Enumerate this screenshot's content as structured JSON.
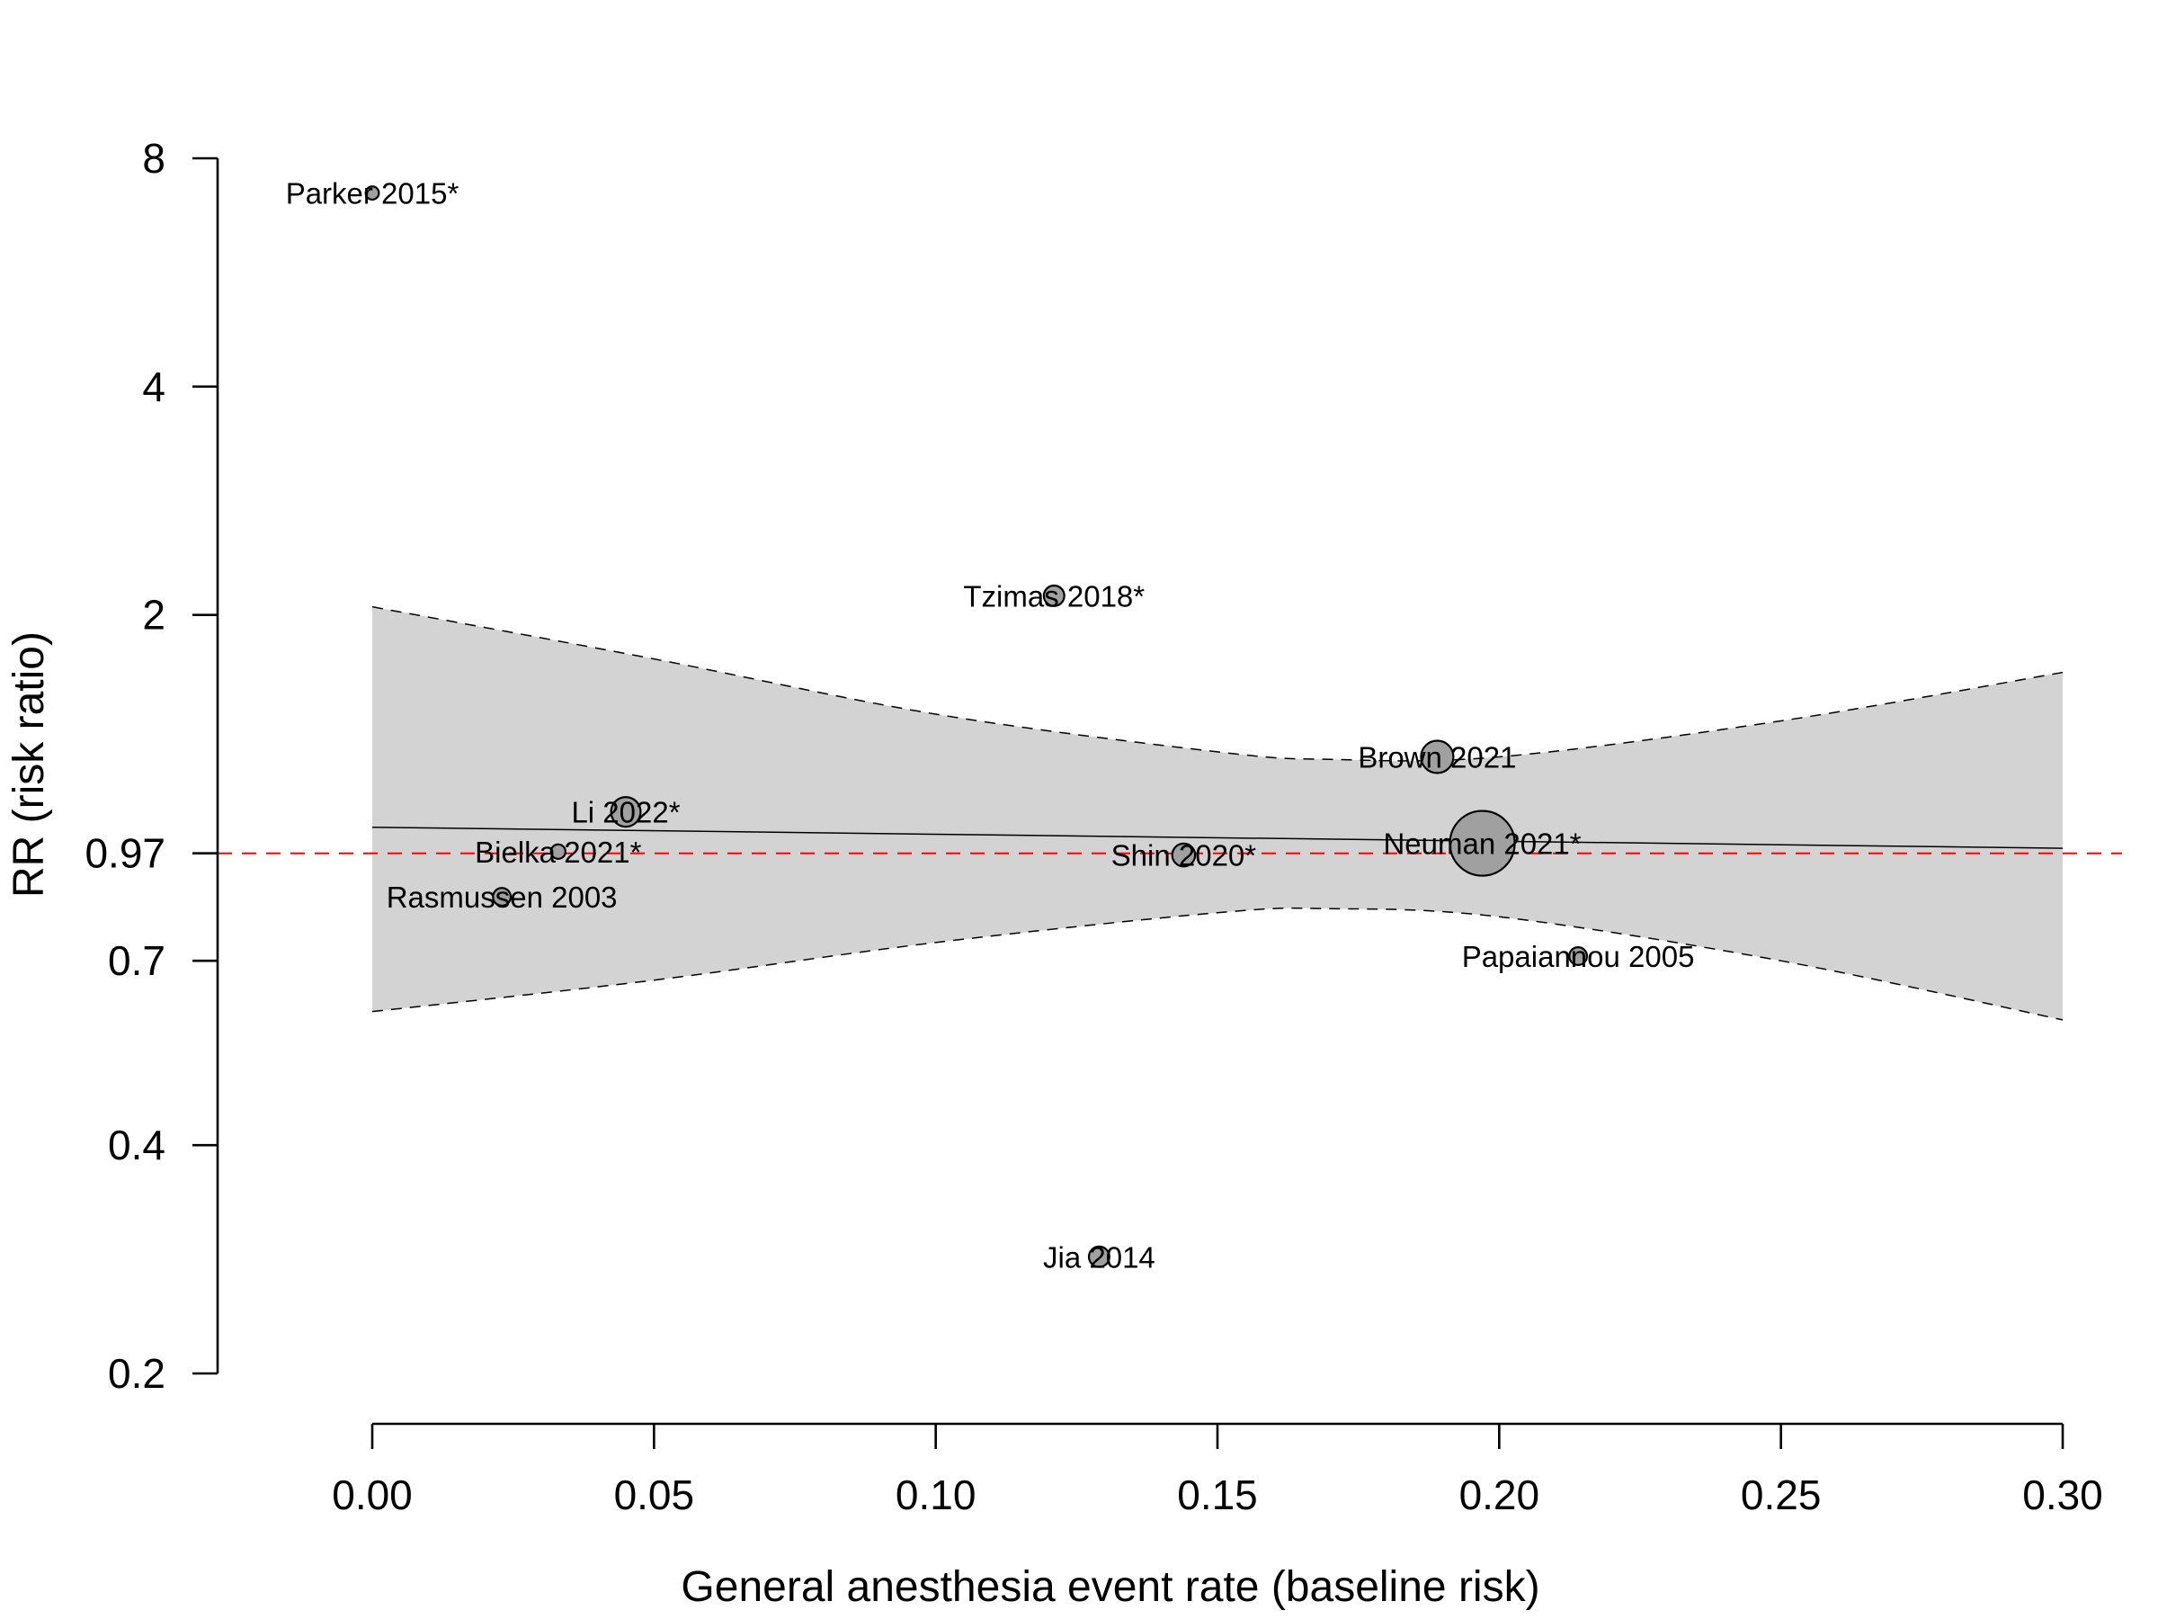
{
  "chart_data": {
    "type": "scatter",
    "subtype": "meta-regression bubble plot",
    "xlabel": "General anesthesia event rate (baseline risk)",
    "ylabel": "RR (risk ratio)",
    "xlim": [
      0.0,
      0.3
    ],
    "ylim": [
      0.2,
      8
    ],
    "y_scale": "log",
    "x_ticks": [
      {
        "value": 0.0,
        "label": "0.00"
      },
      {
        "value": 0.05,
        "label": "0.05"
      },
      {
        "value": 0.1,
        "label": "0.10"
      },
      {
        "value": 0.15,
        "label": "0.15"
      },
      {
        "value": 0.2,
        "label": "0.20"
      },
      {
        "value": 0.25,
        "label": "0.25"
      },
      {
        "value": 0.3,
        "label": "0.30"
      }
    ],
    "y_ticks": [
      {
        "value": 0.2,
        "label": "0.2"
      },
      {
        "value": 0.4,
        "label": "0.4"
      },
      {
        "value": 0.7,
        "label": "0.7"
      },
      {
        "value": 0.97,
        "label": "0.97"
      },
      {
        "value": 2,
        "label": "2"
      },
      {
        "value": 4,
        "label": "4"
      },
      {
        "value": 8,
        "label": "8"
      }
    ],
    "reference_line": {
      "y": 0.97,
      "color": "#ff0000",
      "style": "dashed"
    },
    "regression_line": {
      "x": [
        0.0,
        0.3
      ],
      "y": [
        1.05,
        0.985
      ]
    },
    "confidence_band": {
      "x": [
        0.0,
        0.05,
        0.1,
        0.15,
        0.17,
        0.2,
        0.25,
        0.3
      ],
      "upper": [
        2.05,
        1.75,
        1.48,
        1.32,
        1.29,
        1.3,
        1.45,
        1.68
      ],
      "lower": [
        0.6,
        0.66,
        0.74,
        0.81,
        0.82,
        0.8,
        0.7,
        0.585
      ],
      "fill": "#d3d3d3"
    },
    "studies": [
      {
        "label": "Parker 2015*",
        "x": 0.0,
        "y": 7.2,
        "weight": 0.5
      },
      {
        "label": "Tzimas 2018*",
        "x": 0.121,
        "y": 2.12,
        "weight": 1.2
      },
      {
        "label": "Brown 2021",
        "x": 0.189,
        "y": 1.3,
        "weight": 3.0
      },
      {
        "label": "Li 2022*",
        "x": 0.045,
        "y": 1.1,
        "weight": 2.5
      },
      {
        "label": "Bielka 2021*",
        "x": 0.033,
        "y": 0.975,
        "weight": 0.6
      },
      {
        "label": "Neuman 2021*",
        "x": 0.197,
        "y": 1.0,
        "weight": 12.0
      },
      {
        "label": "Shin 2020*",
        "x": 0.144,
        "y": 0.965,
        "weight": 1.5
      },
      {
        "label": "Rasmussen 2003",
        "x": 0.023,
        "y": 0.85,
        "weight": 0.9
      },
      {
        "label": "Papaiannou 2005",
        "x": 0.214,
        "y": 0.71,
        "weight": 0.9
      },
      {
        "label": "Jia 2014",
        "x": 0.129,
        "y": 0.285,
        "weight": 1.2
      }
    ],
    "point_fill": "#a0a0a0",
    "grid": false,
    "legend": "none"
  }
}
